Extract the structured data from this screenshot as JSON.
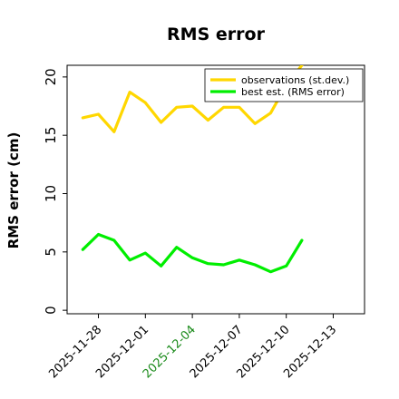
{
  "chart_data": {
    "type": "line",
    "title": "RMS error",
    "xlabel": "",
    "ylabel": "RMS error (cm)",
    "ylim": [
      -0.3,
      21
    ],
    "yticks": [
      0,
      5,
      10,
      15,
      20
    ],
    "xlim": [
      "2025-11-26",
      "2025-12-15"
    ],
    "xticks": [
      {
        "date": "2025-11-28",
        "label": "2025-11-28",
        "color": "#000000"
      },
      {
        "date": "2025-12-01",
        "label": "2025-12-01",
        "color": "#000000"
      },
      {
        "date": "2025-12-04",
        "label": "2025-12-04",
        "color": "#1a8a1a"
      },
      {
        "date": "2025-12-07",
        "label": "2025-12-07",
        "color": "#000000"
      },
      {
        "date": "2025-12-10",
        "label": "2025-12-10",
        "color": "#000000"
      },
      {
        "date": "2025-12-13",
        "label": "2025-12-13",
        "color": "#000000"
      }
    ],
    "x": [
      "2025-11-27",
      "2025-11-28",
      "2025-11-29",
      "2025-11-30",
      "2025-12-01",
      "2025-12-02",
      "2025-12-03",
      "2025-12-04",
      "2025-12-05",
      "2025-12-06",
      "2025-12-07",
      "2025-12-08",
      "2025-12-09",
      "2025-12-10",
      "2025-12-11"
    ],
    "series": [
      {
        "name": "observations (st.dev.)",
        "color": "#ffd700",
        "values": [
          16.5,
          16.8,
          15.3,
          18.7,
          17.8,
          16.1,
          17.4,
          17.5,
          16.3,
          17.4,
          17.4,
          16.0,
          16.9,
          19.3,
          21.0
        ]
      },
      {
        "name": "best est. (RMS error)",
        "color": "#00ee00",
        "values": [
          5.2,
          6.5,
          6.0,
          4.3,
          4.9,
          3.8,
          5.4,
          4.5,
          4.0,
          3.9,
          4.3,
          3.9,
          3.3,
          3.8,
          6.0
        ]
      }
    ],
    "legend": "top-right",
    "grid": false
  }
}
